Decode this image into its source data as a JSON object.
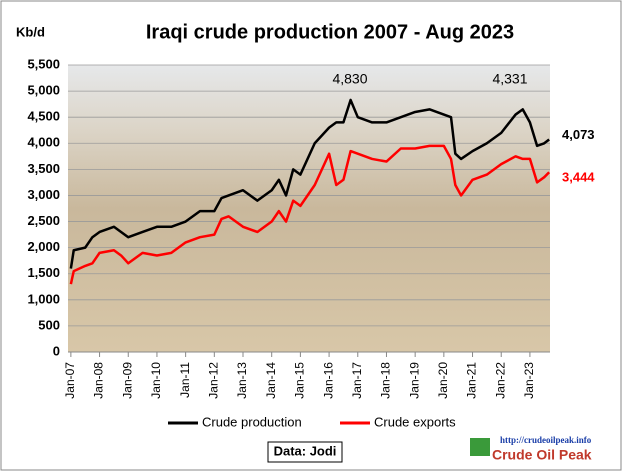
{
  "chart_data": {
    "type": "line",
    "title": "Iraqi crude production 2007 - Aug 2023",
    "y_label": "Kb/d",
    "x": [
      2007.0,
      2007.1,
      2007.5,
      2007.75,
      2008.0,
      2008.5,
      2008.75,
      2009.0,
      2009.5,
      2010.0,
      2010.5,
      2011.0,
      2011.5,
      2012.0,
      2012.25,
      2012.5,
      2013.0,
      2013.5,
      2014.0,
      2014.25,
      2014.5,
      2014.75,
      2015.0,
      2015.5,
      2016.0,
      2016.25,
      2016.5,
      2016.75,
      2017.0,
      2017.5,
      2018.0,
      2018.5,
      2019.0,
      2019.5,
      2020.0,
      2020.25,
      2020.4,
      2020.6,
      2021.0,
      2021.5,
      2022.0,
      2022.5,
      2022.75,
      2023.0,
      2023.25,
      2023.5,
      2023.67
    ],
    "series": [
      {
        "name": "Crude production",
        "color": "#000000",
        "end_label": "4,073",
        "values": [
          1600,
          1950,
          2000,
          2200,
          2300,
          2400,
          2300,
          2200,
          2300,
          2400,
          2400,
          2500,
          2700,
          2700,
          2950,
          3000,
          3100,
          2900,
          3100,
          3300,
          3000,
          3500,
          3400,
          4000,
          4300,
          4400,
          4400,
          4830,
          4500,
          4400,
          4400,
          4500,
          4600,
          4650,
          4550,
          4500,
          3800,
          3700,
          3850,
          4000,
          4200,
          4550,
          4650,
          4400,
          3950,
          4000,
          4073
        ]
      },
      {
        "name": "Crude exports",
        "color": "#ff0000",
        "end_label": "3,444",
        "values": [
          1300,
          1550,
          1650,
          1700,
          1900,
          1950,
          1850,
          1700,
          1900,
          1850,
          1900,
          2100,
          2200,
          2250,
          2550,
          2600,
          2400,
          2300,
          2500,
          2700,
          2500,
          2900,
          2800,
          3200,
          3800,
          3200,
          3300,
          3850,
          3800,
          3700,
          3650,
          3900,
          3900,
          3950,
          3950,
          3700,
          3200,
          3000,
          3300,
          3400,
          3600,
          3750,
          3700,
          3700,
          3250,
          3350,
          3444
        ]
      }
    ],
    "annotations": [
      "4,830",
      "4,331"
    ],
    "xlim": [
      2006.9,
      2023.7
    ],
    "xticks": [
      {
        "value": 2007,
        "label": "Jan-07"
      },
      {
        "value": 2008,
        "label": "Jan-08"
      },
      {
        "value": 2009,
        "label": "Jan-09"
      },
      {
        "value": 2010,
        "label": "Jan-10"
      },
      {
        "value": 2011,
        "label": "Jan-11"
      },
      {
        "value": 2012,
        "label": "Jan-12"
      },
      {
        "value": 2013,
        "label": "Jan-13"
      },
      {
        "value": 2014,
        "label": "Jan-14"
      },
      {
        "value": 2015,
        "label": "Jan-15"
      },
      {
        "value": 2016,
        "label": "Jan-16"
      },
      {
        "value": 2017,
        "label": "Jan-17"
      },
      {
        "value": 2018,
        "label": "Jan-18"
      },
      {
        "value": 2019,
        "label": "Jan-19"
      },
      {
        "value": 2020,
        "label": "Jan-20"
      },
      {
        "value": 2021,
        "label": "Jan-21"
      },
      {
        "value": 2022,
        "label": "Jan-22"
      },
      {
        "value": 2023,
        "label": "Jan-23"
      }
    ],
    "ylim": [
      0,
      5500
    ],
    "yticks": [
      0,
      500,
      {
        "value": 1000,
        "label": "1,000"
      },
      {
        "value": 1500,
        "label": "1,500"
      },
      {
        "value": 2000,
        "label": "2,000"
      },
      {
        "value": 2500,
        "label": "2,500"
      },
      {
        "value": 3000,
        "label": "3,000"
      },
      {
        "value": 3500,
        "label": "3,500"
      },
      {
        "value": 4000,
        "label": "4,000"
      },
      {
        "value": 4500,
        "label": "4,500"
      },
      {
        "value": 5000,
        "label": "5,000"
      },
      {
        "value": 5500,
        "label": "5,500"
      }
    ],
    "grid": true,
    "source": "Data: Jodi",
    "logo_url": "http://crudeoilpeak.info",
    "logo_name": "Crude Oil Peak"
  }
}
